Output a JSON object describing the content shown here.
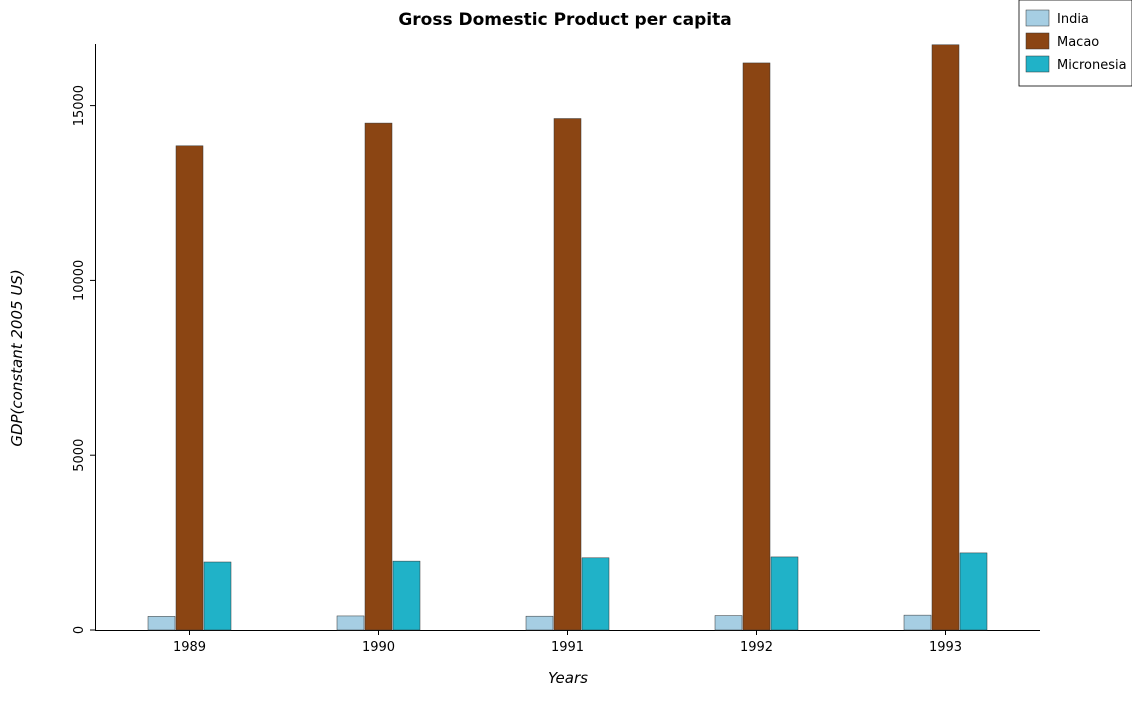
{
  "chart_data": {
    "type": "bar",
    "title": "Gross Domestic Product per capita",
    "xlabel": "Years",
    "ylabel": "GDP(constant 2005 US)",
    "categories": [
      "1989",
      "1990",
      "1991",
      "1992",
      "1993"
    ],
    "series": [
      {
        "name": "India",
        "color": "#a6cee3",
        "values": [
          390,
          402,
          395,
          413,
          425
        ]
      },
      {
        "name": "Macao",
        "color": "#8b4513",
        "values": [
          13850,
          14500,
          14630,
          16220,
          16740
        ]
      },
      {
        "name": "Micronesia",
        "color": "#20b2c8",
        "values": [
          1945,
          1970,
          2065,
          2090,
          2205
        ]
      }
    ],
    "y_ticks": [
      0,
      5000,
      10000,
      15000
    ],
    "y_tick_labels": [
      "0",
      "5000",
      "10000",
      "15000"
    ],
    "ylim": [
      0,
      17500
    ],
    "grid": false,
    "legend_position": "top-right"
  }
}
